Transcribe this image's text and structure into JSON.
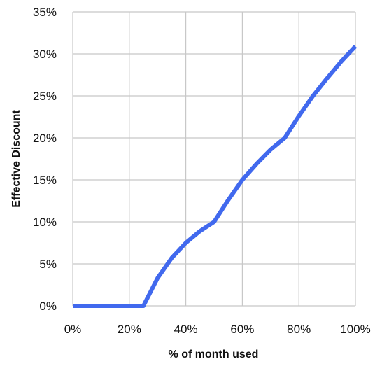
{
  "chart_data": {
    "type": "line",
    "xlabel": "% of month used",
    "ylabel": "Effective Discount",
    "xlim": [
      0,
      100
    ],
    "ylim": [
      0,
      35
    ],
    "x_ticks": [
      "0%",
      "20%",
      "40%",
      "60%",
      "80%",
      "100%"
    ],
    "y_ticks": [
      "0%",
      "5%",
      "10%",
      "15%",
      "20%",
      "25%",
      "30%",
      "35%"
    ],
    "grid": true,
    "legend": "none",
    "series": [
      {
        "color": "#4169EE",
        "x": [
          0,
          25,
          30,
          35,
          40,
          45,
          50,
          55,
          60,
          65,
          70,
          75,
          80,
          85,
          90,
          95,
          100
        ],
        "y": [
          0,
          0,
          3.3,
          5.7,
          7.5,
          8.9,
          10,
          12.6,
          15,
          16.9,
          18.6,
          20,
          22.6,
          25,
          27.1,
          29.1,
          30.9
        ]
      }
    ]
  }
}
